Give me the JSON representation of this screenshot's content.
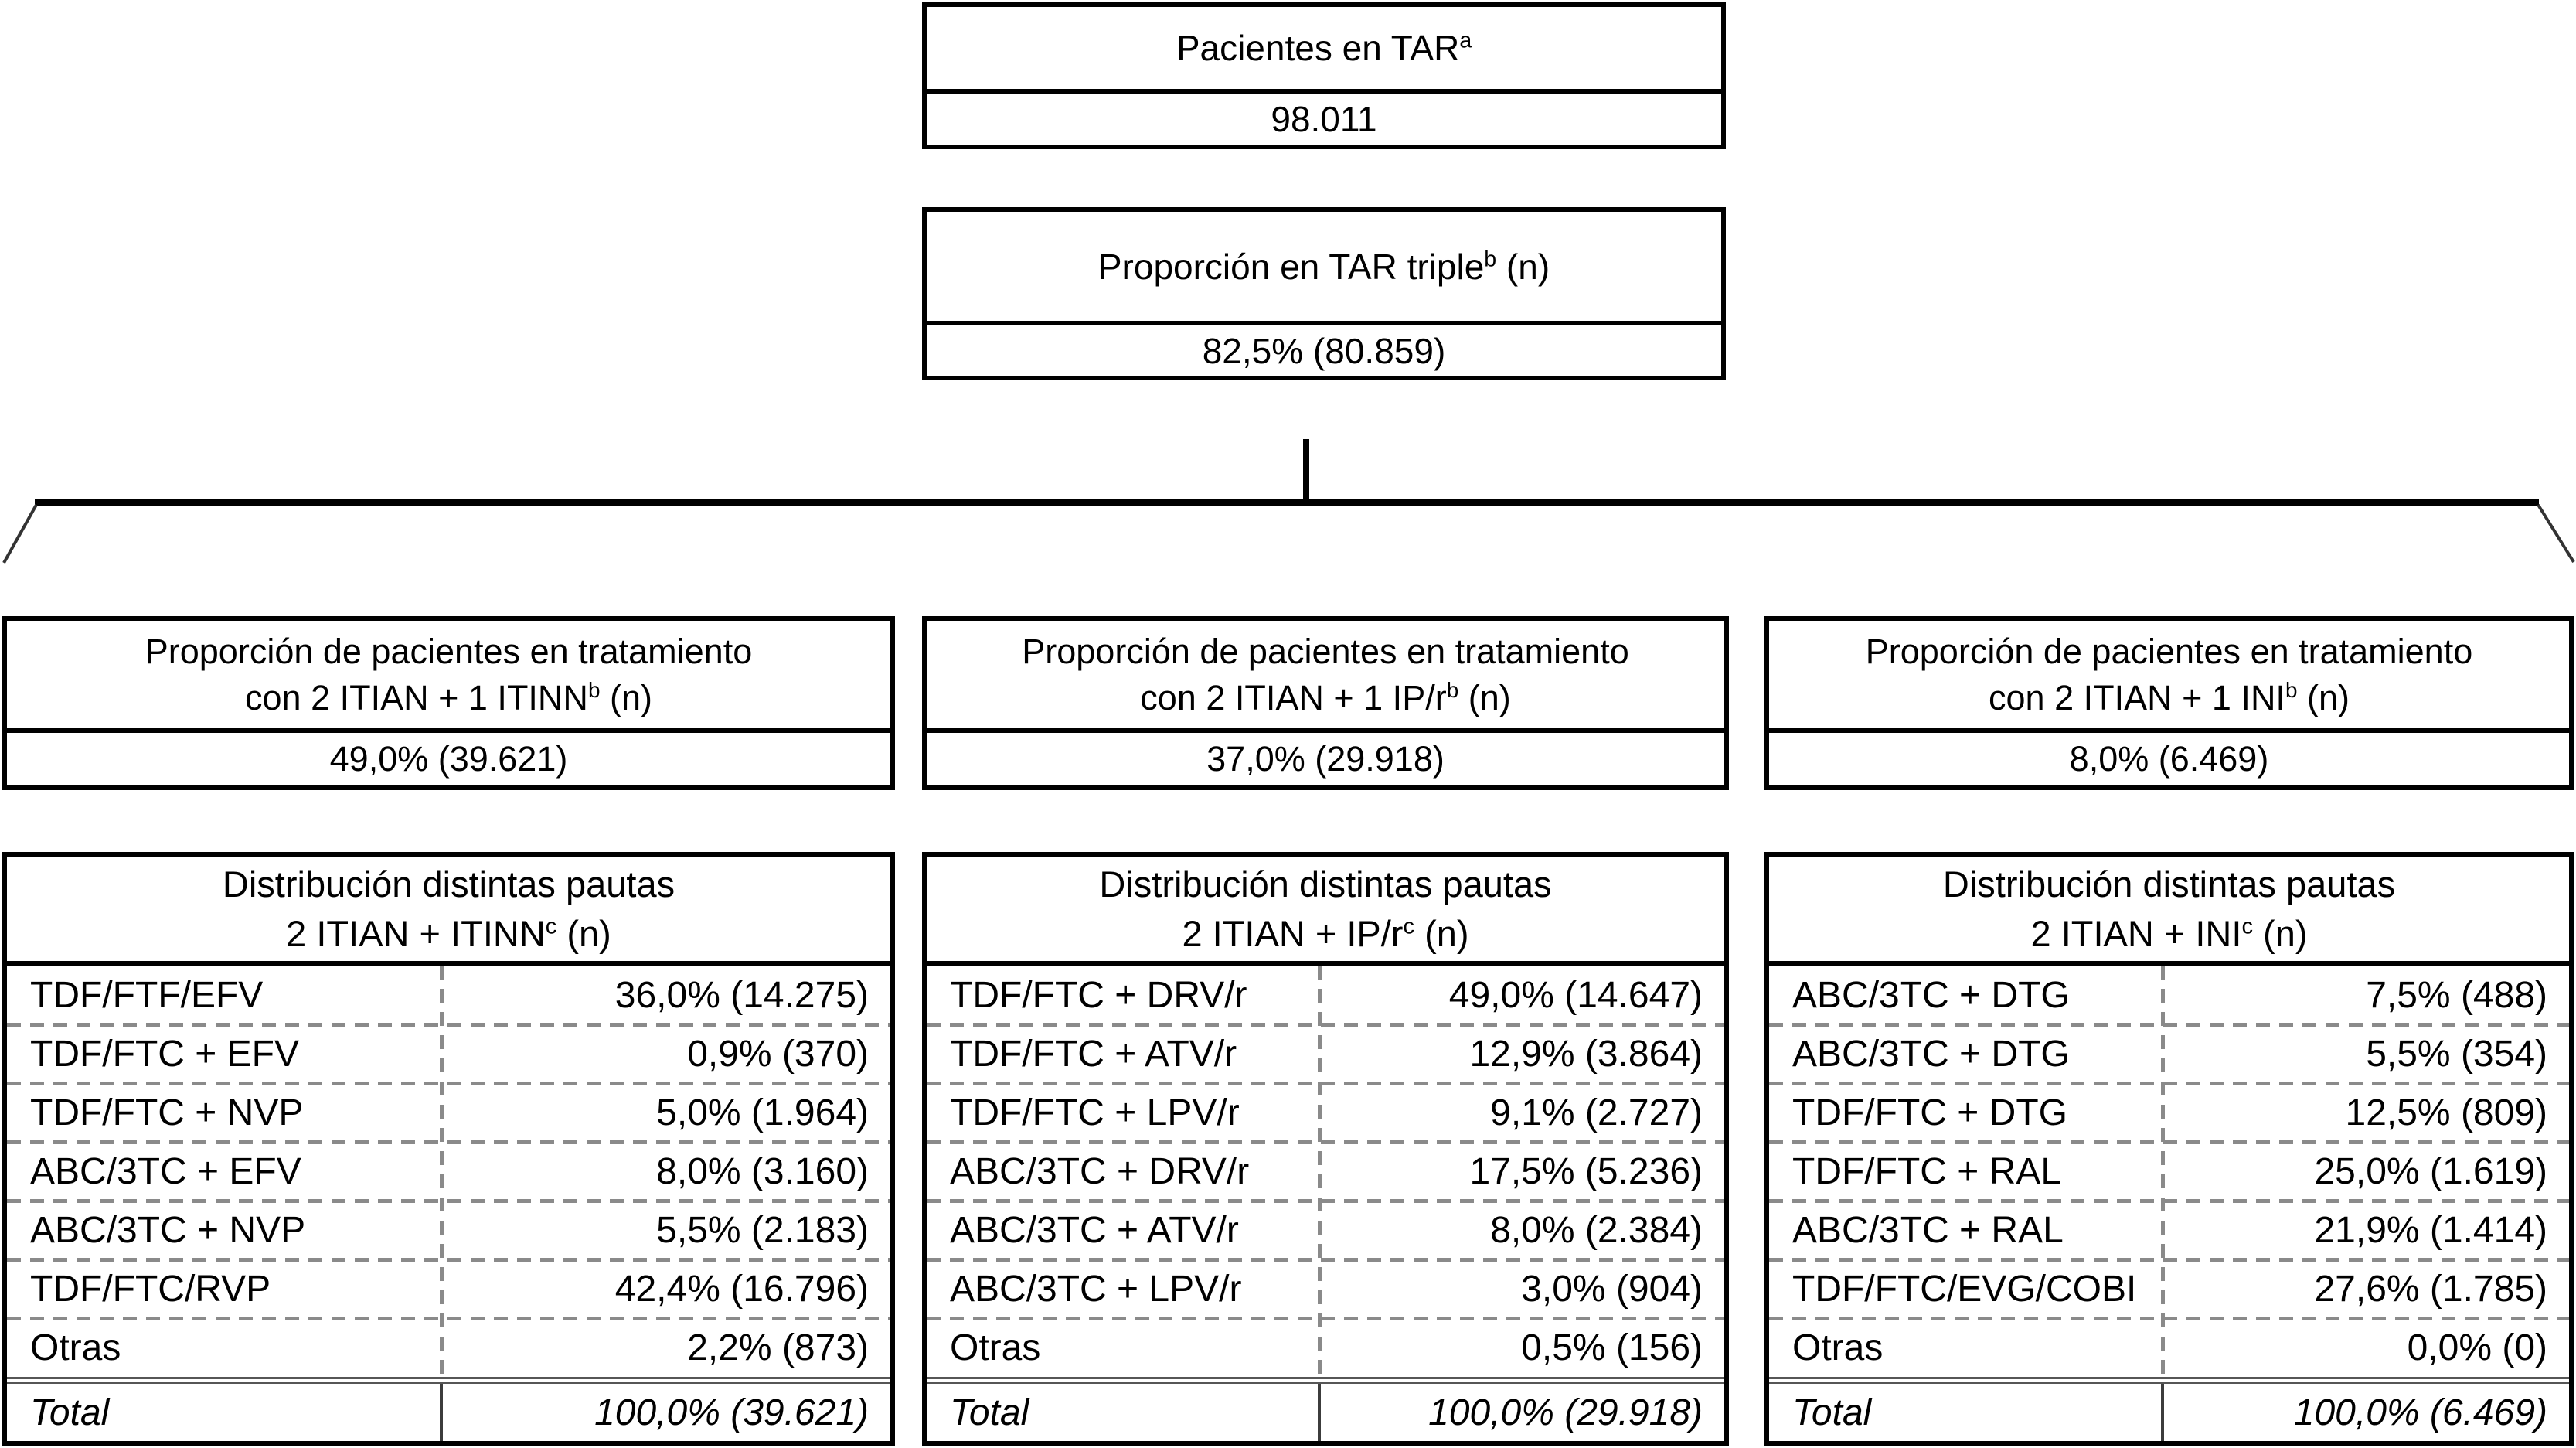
{
  "boxes": {
    "root": {
      "title": "Pacientes en TAR",
      "title_sup": "a",
      "title_suffix": "",
      "value": "98.011"
    },
    "triple": {
      "title": "Proporción en TAR triple",
      "title_sup": "b",
      "title_suffix": " (n)",
      "value": "82,5% (80.859)"
    }
  },
  "branches": [
    {
      "title_line1": "Proporción de pacientes en tratamiento",
      "title_line2": "con 2 ITIAN + 1 ITINN",
      "title_sup": "b",
      "title_suffix": " (n)",
      "value": "49,0% (39.621)"
    },
    {
      "title_line1": "Proporción de pacientes en tratamiento",
      "title_line2": "con 2 ITIAN + 1 IP/r",
      "title_sup": "b",
      "title_suffix": " (n)",
      "value": "37,0% (29.918)"
    },
    {
      "title_line1": "Proporción de pacientes en tratamiento",
      "title_line2": "con 2 ITIAN + 1 INI",
      "title_sup": "b",
      "title_suffix": " (n)",
      "value": "8,0% (6.469)"
    }
  ],
  "tables": [
    {
      "header_line1": "Distribución distintas pautas",
      "header_line2": "2 ITIAN + ITINN",
      "header_sup": "c",
      "header_suffix": " (n)",
      "rows": [
        {
          "label": "TDF/FTF/EFV",
          "value": "36,0% (14.275)"
        },
        {
          "label": "TDF/FTC + EFV",
          "value": "0,9% (370)"
        },
        {
          "label": "TDF/FTC + NVP",
          "value": "5,0% (1.964)"
        },
        {
          "label": "ABC/3TC + EFV",
          "value": "8,0% (3.160)"
        },
        {
          "label": "ABC/3TC + NVP",
          "value": "5,5% (2.183)"
        },
        {
          "label": "TDF/FTC/RVP",
          "value": "42,4% (16.796)"
        },
        {
          "label": "Otras",
          "value": "2,2% (873)"
        }
      ],
      "total_label": "Total",
      "total_value": "100,0% (39.621)"
    },
    {
      "header_line1": "Distribución distintas pautas",
      "header_line2": "2 ITIAN + IP/r",
      "header_sup": "c",
      "header_suffix": " (n)",
      "rows": [
        {
          "label": "TDF/FTC + DRV/r",
          "value": "49,0% (14.647)"
        },
        {
          "label": "TDF/FTC + ATV/r",
          "value": "12,9% (3.864)"
        },
        {
          "label": "TDF/FTC + LPV/r",
          "value": "9,1% (2.727)"
        },
        {
          "label": "ABC/3TC + DRV/r",
          "value": "17,5% (5.236)"
        },
        {
          "label": "ABC/3TC + ATV/r",
          "value": "8,0% (2.384)"
        },
        {
          "label": "ABC/3TC + LPV/r",
          "value": "3,0% (904)"
        },
        {
          "label": "Otras",
          "value": "0,5% (156)"
        }
      ],
      "total_label": "Total",
      "total_value": "100,0% (29.918)"
    },
    {
      "header_line1": "Distribución distintas pautas",
      "header_line2": "2 ITIAN + INI",
      "header_sup": "c",
      "header_suffix": " (n)",
      "rows": [
        {
          "label": "ABC/3TC + DTG",
          "value": "7,5% (488)"
        },
        {
          "label": "ABC/3TC + DTG",
          "value": "5,5% (354)"
        },
        {
          "label": "TDF/FTC + DTG",
          "value": "12,5% (809)"
        },
        {
          "label": "TDF/FTC + RAL",
          "value": "25,0% (1.619)"
        },
        {
          "label": "ABC/3TC + RAL",
          "value": "21,9% (1.414)"
        },
        {
          "label": "TDF/FTC/EVG/COBI",
          "value": "27,6% (1.785)"
        },
        {
          "label": "Otras",
          "value": "0,0% (0)"
        }
      ],
      "total_label": "Total",
      "total_value": "100,0% (6.469)"
    }
  ],
  "colors": {
    "border": "#000000",
    "text": "#000000",
    "dashed_line": "#8a8a8a",
    "double_rule": "#565656",
    "background": "#ffffff"
  }
}
